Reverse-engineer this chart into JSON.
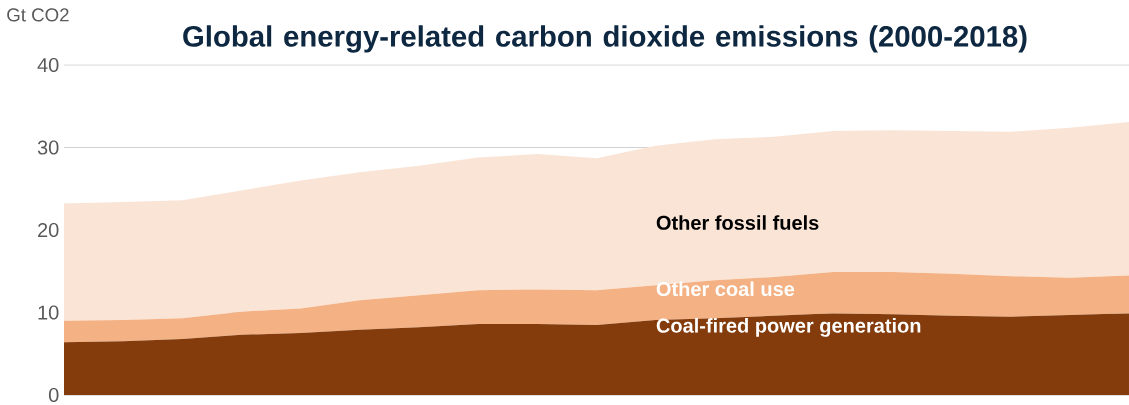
{
  "chart_data": {
    "type": "area",
    "stacked": true,
    "title": "Global energy-related carbon dioxide emissions (2000-2018)",
    "ylabel": "Gt CO2",
    "categories": [
      null,
      null,
      null,
      null,
      null,
      null,
      null,
      null,
      null,
      null,
      null,
      null,
      null,
      null,
      null,
      null,
      null,
      null,
      null
    ],
    "series": [
      {
        "name": "Coal-fired power generation",
        "color": "#843c0c",
        "values": [
          6.4,
          6.5,
          6.8,
          7.3,
          7.5,
          7.9,
          8.2,
          8.6,
          8.6,
          8.5,
          9.1,
          9.3,
          9.6,
          9.9,
          9.8,
          9.6,
          9.5,
          9.7,
          9.9
        ]
      },
      {
        "name": "Other coal use",
        "color": "#f4b183",
        "values": [
          2.6,
          2.6,
          2.5,
          2.8,
          3.0,
          3.6,
          3.9,
          4.1,
          4.2,
          4.2,
          4.2,
          4.6,
          4.7,
          5.0,
          5.1,
          5.1,
          4.9,
          4.5,
          4.6
        ]
      },
      {
        "name": "Other fossil fuels",
        "color": "#fae4d6",
        "values": [
          14.2,
          14.3,
          14.3,
          14.7,
          15.5,
          15.5,
          15.7,
          16.1,
          16.4,
          16.0,
          16.9,
          17.1,
          17.0,
          17.1,
          17.2,
          17.3,
          17.5,
          18.2,
          18.6
        ]
      }
    ],
    "ylim": [
      0,
      40
    ],
    "yticks": [
      0,
      10,
      20,
      30,
      40
    ],
    "grid": "y",
    "tick_labels": "y"
  }
}
